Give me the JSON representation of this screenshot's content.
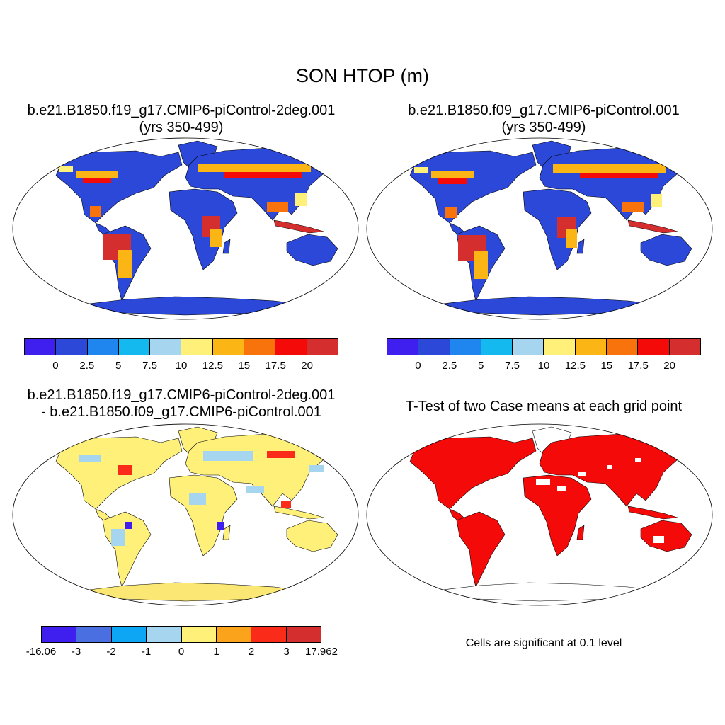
{
  "main_title": "SON HTOP (m)",
  "panels": [
    {
      "id": "case1",
      "title_line1": "b.e21.B1850.f19_g17.CMIP6-piControl-2deg.001",
      "title_line2": "(yrs 350-499)",
      "colorbar": {
        "colors": [
          "#3f1ef0",
          "#2b48d8",
          "#1f86f0",
          "#14b9f0",
          "#a6d5ef",
          "#fff07a",
          "#fbb514",
          "#f9730d",
          "#f50a0a",
          "#d52e2e"
        ],
        "labels": [
          "0",
          "2.5",
          "5",
          "7.5",
          "10",
          "12.5",
          "15",
          "17.5",
          "20"
        ]
      }
    },
    {
      "id": "case2",
      "title_line1": "b.e21.B1850.f09_g17.CMIP6-piControl.001",
      "title_line2": "(yrs 350-499)",
      "colorbar": {
        "colors": [
          "#3f1ef0",
          "#2b48d8",
          "#1f86f0",
          "#14b9f0",
          "#a6d5ef",
          "#fff07a",
          "#fbb514",
          "#f9730d",
          "#f50a0a",
          "#d52e2e"
        ],
        "labels": [
          "0",
          "2.5",
          "5",
          "7.5",
          "10",
          "12.5",
          "15",
          "17.5",
          "20"
        ]
      }
    },
    {
      "id": "diff",
      "title_line1": "b.e21.B1850.f19_g17.CMIP6-piControl-2deg.001",
      "title_line2": "- b.e21.B1850.f09_g17.CMIP6-piControl.001",
      "colorbar": {
        "colors": [
          "#3f1ef0",
          "#4a6fe0",
          "#0da6f5",
          "#a6d5ef",
          "#fff07a",
          "#fba31a",
          "#fb2b1a",
          "#d52e2e"
        ],
        "labels": [
          "-16.06",
          "-3",
          "-2",
          "-1",
          "0",
          "1",
          "2",
          "3",
          "17.962"
        ]
      }
    },
    {
      "id": "ttest",
      "title_line1": "T-Test of two Case means at each grid point",
      "note": "Cells are significant at 0.1 level"
    }
  ],
  "colors": {
    "land_low": "#2b48d8",
    "land_high": "#d52e2e",
    "diff_fill": "#fff07a",
    "diff_antarctica": "#fbe774",
    "significant": "#f50a0a"
  }
}
